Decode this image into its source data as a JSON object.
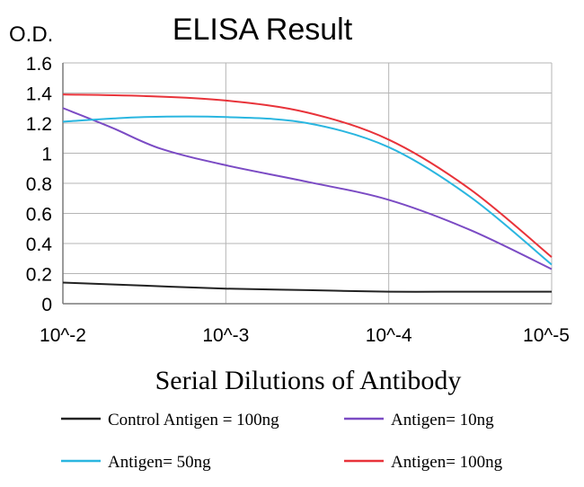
{
  "chart_data": {
    "type": "line",
    "title": "ELISA Result",
    "ylabel": "O.D.",
    "xlabel": "Serial Dilutions of Antibody",
    "categories": [
      "10^-2",
      "10^-3",
      "10^-4",
      "10^-5"
    ],
    "x_scale": "log",
    "ylim": [
      0,
      1.6
    ],
    "y_ticks": [
      "0",
      "0.2",
      "0.4",
      "0.6",
      "0.8",
      "1",
      "1.2",
      "1.4",
      "1.6"
    ],
    "grid": true,
    "legend_position": "bottom",
    "series": [
      {
        "name": "Control Antigen = 100ng",
        "color": "#222222",
        "points": [
          [
            0,
            0.14
          ],
          [
            0.5,
            0.12
          ],
          [
            1,
            0.1
          ],
          [
            1.5,
            0.09
          ],
          [
            2,
            0.08
          ],
          [
            2.5,
            0.08
          ],
          [
            3,
            0.08
          ]
        ]
      },
      {
        "name": "Antigen= 10ng",
        "color": "#7b4bc4",
        "points": [
          [
            0,
            1.3
          ],
          [
            0.3,
            1.17
          ],
          [
            0.6,
            1.03
          ],
          [
            1,
            0.92
          ],
          [
            1.5,
            0.81
          ],
          [
            2,
            0.69
          ],
          [
            2.5,
            0.49
          ],
          [
            3,
            0.23
          ]
        ]
      },
      {
        "name": "Antigen= 50ng",
        "color": "#2ab6e0",
        "points": [
          [
            0,
            1.21
          ],
          [
            0.5,
            1.24
          ],
          [
            1,
            1.24
          ],
          [
            1.5,
            1.2
          ],
          [
            2,
            1.04
          ],
          [
            2.5,
            0.71
          ],
          [
            3,
            0.26
          ]
        ]
      },
      {
        "name": "Antigen= 100ng",
        "color": "#e8333a",
        "points": [
          [
            0,
            1.39
          ],
          [
            0.5,
            1.38
          ],
          [
            1,
            1.35
          ],
          [
            1.5,
            1.27
          ],
          [
            2,
            1.09
          ],
          [
            2.5,
            0.76
          ],
          [
            3,
            0.31
          ]
        ]
      }
    ]
  }
}
